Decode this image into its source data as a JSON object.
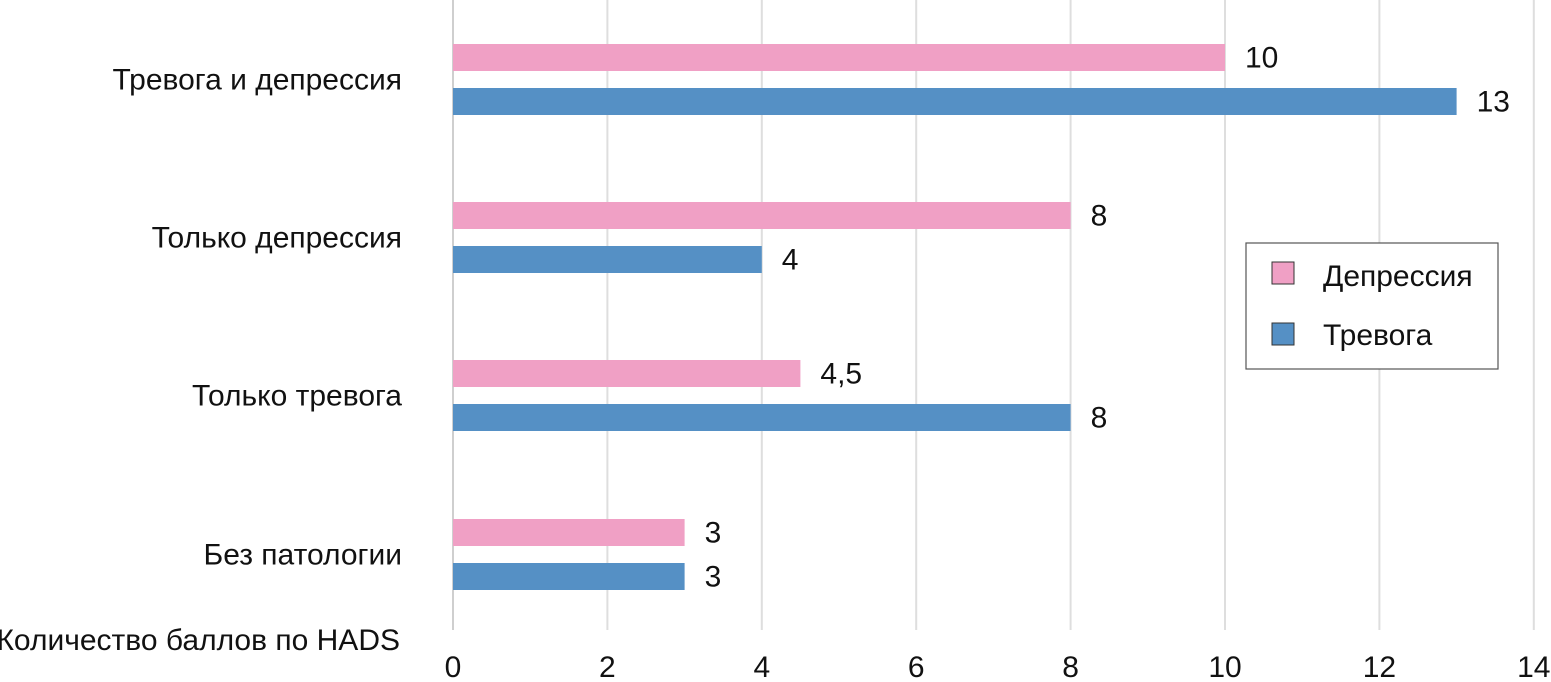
{
  "chart_data": {
    "type": "bar",
    "orientation": "horizontal",
    "categories": [
      "Тревога и депрессия",
      "Только депрессия",
      "Только тревога",
      "Без патологии"
    ],
    "series": [
      {
        "name": "Депрессия",
        "color": "#f0a0c5",
        "values": [
          10,
          8,
          4.5,
          3
        ],
        "labels": [
          "10",
          "8",
          "4,5",
          "3"
        ]
      },
      {
        "name": "Тревога",
        "color": "#5590c5",
        "values": [
          13,
          4,
          8,
          3
        ],
        "labels": [
          "13",
          "4",
          "8",
          "3"
        ]
      }
    ],
    "xlabel": "Количество баллов по HADS",
    "ylabel": "",
    "xlim": [
      0,
      14
    ],
    "xticks": [
      "0",
      "2",
      "4",
      "6",
      "8",
      "10",
      "12",
      "14"
    ],
    "grid": true,
    "legend_position": "right"
  }
}
